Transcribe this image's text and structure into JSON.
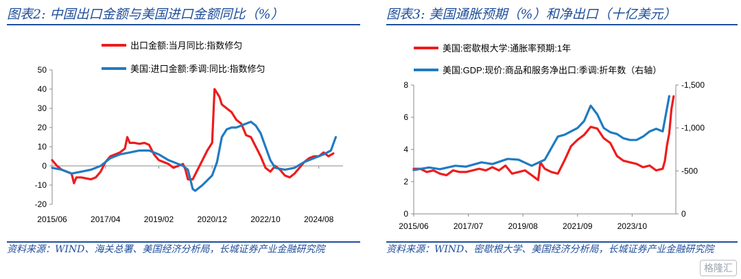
{
  "watermark": "格隆汇",
  "colors": {
    "red": "#ee1c1c",
    "blue": "#1f7bc2",
    "title_blue": "#1f4e9a"
  },
  "chart_data": [
    {
      "type": "line",
      "title": "图表2:  中国出口金额与美国进口金额同比（%）",
      "source": "资料来源：WIND、海关总署、美国经济分析局，长城证券产业金融研究院",
      "legend_placement": "top",
      "x_range": [
        "2015-06",
        "2025-06"
      ],
      "xticks": [
        "2015/06",
        "2017/04",
        "2019/02",
        "2020/12",
        "2022/10",
        "2024/08"
      ],
      "ylim": [
        -20,
        50
      ],
      "yticks": [
        -20,
        -10,
        0,
        10,
        20,
        30,
        40,
        50
      ],
      "grid": false,
      "series": [
        {
          "name": "出口金额:当月同比:指数修匀",
          "color": "#ee1c1c",
          "points": [
            [
              "2015-06",
              3
            ],
            [
              "2015-08",
              0
            ],
            [
              "2015-10",
              -2
            ],
            [
              "2015-12",
              -3
            ],
            [
              "2016-02",
              -4
            ],
            [
              "2016-03",
              -9
            ],
            [
              "2016-04",
              -6
            ],
            [
              "2016-06",
              -6
            ],
            [
              "2016-08",
              -6.5
            ],
            [
              "2016-10",
              -7
            ],
            [
              "2016-12",
              -6
            ],
            [
              "2017-02",
              -3
            ],
            [
              "2017-04",
              2
            ],
            [
              "2017-06",
              5
            ],
            [
              "2017-08",
              6
            ],
            [
              "2017-10",
              7
            ],
            [
              "2017-12",
              9
            ],
            [
              "2018-01",
              15
            ],
            [
              "2018-02",
              12
            ],
            [
              "2018-04",
              12
            ],
            [
              "2018-06",
              11.5
            ],
            [
              "2018-08",
              12
            ],
            [
              "2018-10",
              11
            ],
            [
              "2018-12",
              6
            ],
            [
              "2019-02",
              3
            ],
            [
              "2019-04",
              2
            ],
            [
              "2019-06",
              1
            ],
            [
              "2019-08",
              -1
            ],
            [
              "2019-10",
              0
            ],
            [
              "2019-12",
              1
            ],
            [
              "2020-01",
              -2
            ],
            [
              "2020-02",
              -7
            ],
            [
              "2020-04",
              -7
            ],
            [
              "2020-06",
              -2
            ],
            [
              "2020-08",
              3
            ],
            [
              "2020-10",
              8
            ],
            [
              "2020-12",
              12
            ],
            [
              "2021-01",
              40
            ],
            [
              "2021-02",
              38
            ],
            [
              "2021-03",
              36
            ],
            [
              "2021-04",
              32
            ],
            [
              "2021-06",
              30
            ],
            [
              "2021-08",
              28
            ],
            [
              "2021-10",
              24
            ],
            [
              "2021-12",
              22
            ],
            [
              "2022-02",
              16
            ],
            [
              "2022-04",
              15
            ],
            [
              "2022-06",
              10
            ],
            [
              "2022-08",
              5
            ],
            [
              "2022-10",
              -1
            ],
            [
              "2022-12",
              -3
            ],
            [
              "2023-02",
              0
            ],
            [
              "2023-04",
              -2
            ],
            [
              "2023-06",
              -5
            ],
            [
              "2023-08",
              -6
            ],
            [
              "2023-10",
              -4
            ],
            [
              "2023-12",
              -1
            ],
            [
              "2024-02",
              2
            ],
            [
              "2024-04",
              4
            ],
            [
              "2024-06",
              5
            ],
            [
              "2024-08",
              5
            ],
            [
              "2024-10",
              7
            ],
            [
              "2024-12",
              5
            ],
            [
              "2025-02",
              6.5
            ]
          ]
        },
        {
          "name": "美国:进口金额:季调:同比:指数修匀",
          "color": "#1f7bc2",
          "points": [
            [
              "2015-06",
              -1
            ],
            [
              "2015-10",
              -2
            ],
            [
              "2016-02",
              -4
            ],
            [
              "2016-06",
              -3
            ],
            [
              "2016-10",
              -2
            ],
            [
              "2017-02",
              0
            ],
            [
              "2017-06",
              4
            ],
            [
              "2017-10",
              6
            ],
            [
              "2018-02",
              7
            ],
            [
              "2018-06",
              8
            ],
            [
              "2018-10",
              8
            ],
            [
              "2019-02",
              6
            ],
            [
              "2019-06",
              3
            ],
            [
              "2019-10",
              1
            ],
            [
              "2019-12",
              0
            ],
            [
              "2020-02",
              -2
            ],
            [
              "2020-04",
              -12
            ],
            [
              "2020-05",
              -13
            ],
            [
              "2020-08",
              -10
            ],
            [
              "2020-12",
              -5
            ],
            [
              "2021-02",
              2
            ],
            [
              "2021-04",
              15
            ],
            [
              "2021-06",
              19
            ],
            [
              "2021-08",
              20
            ],
            [
              "2021-10",
              20
            ],
            [
              "2021-12",
              21
            ],
            [
              "2022-02",
              22
            ],
            [
              "2022-04",
              23
            ],
            [
              "2022-06",
              21
            ],
            [
              "2022-08",
              17
            ],
            [
              "2022-10",
              10
            ],
            [
              "2022-12",
              3
            ],
            [
              "2023-02",
              -1
            ],
            [
              "2023-06",
              -2
            ],
            [
              "2023-10",
              -1
            ],
            [
              "2024-02",
              2
            ],
            [
              "2024-06",
              4
            ],
            [
              "2024-10",
              6
            ],
            [
              "2025-01",
              8
            ],
            [
              "2025-03",
              15
            ]
          ]
        }
      ]
    },
    {
      "type": "line",
      "title": "图表3:  美国通胀预期（%）和净出口（十亿美元）",
      "source": "资料来源：WIND、密歇根大学、美国经济分析局，长城证券产业金融研究院",
      "legend_placement": "top",
      "x_range": [
        "2015-06",
        "2025-06"
      ],
      "xticks": [
        "2015/06",
        "2017/07",
        "2019/08",
        "2021/09",
        "2023/10"
      ],
      "ylim": [
        0,
        8
      ],
      "yticks": [
        0,
        2,
        4,
        6,
        8
      ],
      "y2lim": [
        0,
        -1500
      ],
      "y2ticks": [
        0,
        -500,
        -1000,
        -1500
      ],
      "y2ticks_labels": [
        "0",
        "-500",
        "-1,000",
        "-1,500"
      ],
      "grid": false,
      "series": [
        {
          "name": "美国:密歇根大学:通胀率预期:1年",
          "color": "#ee1c1c",
          "axis": "left",
          "points": [
            [
              "2015-06",
              2.8
            ],
            [
              "2015-09",
              2.8
            ],
            [
              "2015-12",
              2.6
            ],
            [
              "2016-03",
              2.7
            ],
            [
              "2016-06",
              2.5
            ],
            [
              "2016-09",
              2.4
            ],
            [
              "2016-12",
              2.7
            ],
            [
              "2017-03",
              2.6
            ],
            [
              "2017-06",
              2.6
            ],
            [
              "2017-09",
              2.7
            ],
            [
              "2017-12",
              2.8
            ],
            [
              "2018-03",
              2.7
            ],
            [
              "2018-06",
              2.9
            ],
            [
              "2018-09",
              2.7
            ],
            [
              "2018-12",
              3.0
            ],
            [
              "2019-03",
              2.5
            ],
            [
              "2019-06",
              2.6
            ],
            [
              "2019-09",
              2.7
            ],
            [
              "2019-12",
              2.4
            ],
            [
              "2020-03",
              2.1
            ],
            [
              "2020-04",
              3.2
            ],
            [
              "2020-06",
              2.8
            ],
            [
              "2020-09",
              2.6
            ],
            [
              "2020-12",
              2.5
            ],
            [
              "2021-03",
              3.3
            ],
            [
              "2021-06",
              4.2
            ],
            [
              "2021-09",
              4.6
            ],
            [
              "2021-12",
              4.9
            ],
            [
              "2022-03",
              5.4
            ],
            [
              "2022-06",
              5.3
            ],
            [
              "2022-09",
              4.7
            ],
            [
              "2022-12",
              4.4
            ],
            [
              "2023-03",
              3.6
            ],
            [
              "2023-06",
              3.3
            ],
            [
              "2023-09",
              3.2
            ],
            [
              "2023-12",
              3.1
            ],
            [
              "2024-03",
              2.9
            ],
            [
              "2024-06",
              3.0
            ],
            [
              "2024-09",
              2.7
            ],
            [
              "2024-12",
              2.8
            ],
            [
              "2025-01",
              3.3
            ],
            [
              "2025-02",
              4.3
            ],
            [
              "2025-03",
              5.0
            ],
            [
              "2025-04",
              6.5
            ],
            [
              "2025-05",
              7.3
            ]
          ]
        },
        {
          "name": "美国:GDP:现价:商品和服务净出口:季调:折年数（右轴）",
          "color": "#1f7bc2",
          "axis": "right",
          "points": [
            [
              "2015-06",
              -510
            ],
            [
              "2016-01",
              -540
            ],
            [
              "2016-06",
              -520
            ],
            [
              "2017-01",
              -560
            ],
            [
              "2017-06",
              -550
            ],
            [
              "2018-01",
              -600
            ],
            [
              "2018-06",
              -580
            ],
            [
              "2019-01",
              -640
            ],
            [
              "2019-06",
              -630
            ],
            [
              "2019-12",
              -560
            ],
            [
              "2020-06",
              -630
            ],
            [
              "2020-12",
              -900
            ],
            [
              "2021-03",
              -920
            ],
            [
              "2021-06",
              -960
            ],
            [
              "2021-09",
              -1000
            ],
            [
              "2021-12",
              -1080
            ],
            [
              "2022-03",
              -1260
            ],
            [
              "2022-06",
              -1160
            ],
            [
              "2022-09",
              -1000
            ],
            [
              "2022-12",
              -950
            ],
            [
              "2023-03",
              -930
            ],
            [
              "2023-06",
              -880
            ],
            [
              "2023-09",
              -860
            ],
            [
              "2023-12",
              -860
            ],
            [
              "2024-03",
              -900
            ],
            [
              "2024-06",
              -960
            ],
            [
              "2024-09",
              -990
            ],
            [
              "2024-12",
              -960
            ],
            [
              "2025-03",
              -1370
            ]
          ]
        }
      ]
    }
  ]
}
